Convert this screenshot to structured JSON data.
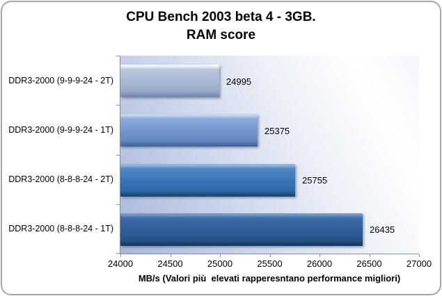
{
  "chart_data": {
    "type": "bar",
    "orientation": "horizontal",
    "title": "CPU Bench 2003 beta 4 - 3GB. RAM score",
    "title_line1": "CPU Bench 2003 beta 4 - 3GB.",
    "title_line2": "RAM score",
    "categories": [
      "DDR3-2000 (9-9-9-24 - 2T)",
      "DDR3-2000 (9-9-9-24 - 1T)",
      "DDR3-2000 (8-8-8-24 - 2T)",
      "DDR3-2000 (8-8-8-24 - 1T)"
    ],
    "values": [
      24995,
      25375,
      25755,
      26435
    ],
    "value_labels": [
      "24995",
      "25375",
      "25755",
      "26435"
    ],
    "xlabel": "MB/s (Valori più  elevati rapperesntano performance migliori)",
    "xlim": [
      24000,
      27000
    ],
    "xticks": [
      24000,
      24500,
      25000,
      25500,
      26000,
      26500,
      27000
    ],
    "grid": false,
    "legend": false,
    "data_labels_position": "outside-end",
    "bar_gradients": [
      {
        "highlight": "#eff4fa",
        "light": "#bac6de",
        "mid": "#a9b7d3",
        "low": "#98a9c8",
        "edge": "#7688ad"
      },
      {
        "highlight": "#c3d6ee",
        "light": "#8aabdc",
        "mid": "#7095cd",
        "low": "#6287c2",
        "edge": "#43679e"
      },
      {
        "highlight": "#8fb4de",
        "light": "#4f86c4",
        "mid": "#3874b6",
        "low": "#2f68a7",
        "edge": "#1d4671"
      },
      {
        "highlight": "#6f9ac9",
        "light": "#3e6ba5",
        "mid": "#2f5d99",
        "low": "#285287",
        "edge": "#193b64"
      }
    ],
    "colors": {
      "plot_bg_left": "#a7b6da",
      "plot_bg_right": "#ffffff",
      "axis_line": "#8e8e8e",
      "frame_border": "#a6a6a6",
      "text": "#000000"
    }
  }
}
